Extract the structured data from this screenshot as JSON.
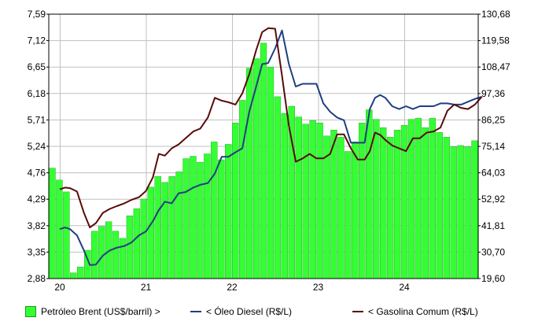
{
  "chart_data": {
    "type": "bar",
    "x_ticks": [
      "20",
      "21",
      "22",
      "23",
      "24"
    ],
    "left_axis": {
      "ticks": [
        "7,59",
        "7,12",
        "6,65",
        "6,18",
        "5,71",
        "5,24",
        "4,76",
        "4,29",
        "3,82",
        "3,35",
        "2,88"
      ],
      "ylim": [
        2.88,
        7.59
      ]
    },
    "right_axis": {
      "ticks": [
        "130,68",
        "119,58",
        "108,47",
        "97,36",
        "86,25",
        "75,14",
        "64,03",
        "52,92",
        "41,81",
        "30,70",
        "19,60"
      ],
      "ylim": [
        19.6,
        130.68
      ]
    },
    "grid": true,
    "legend_position": "bottom",
    "colors": {
      "bar": "#33ff33",
      "bar_edge": "#229922",
      "diesel": "#1f3f7f",
      "gasolina": "#5a0a0a",
      "grid": "#c0c0c0"
    },
    "series": [
      {
        "name": "Petróleo Brent (US$/barril) >",
        "axis": "right",
        "kind": "bar",
        "values": [
          66.0,
          61.0,
          56.0,
          22.0,
          24.5,
          31.5,
          39.5,
          41.5,
          43.5,
          39.5,
          36.5,
          46.0,
          49.0,
          53.0,
          58.0,
          62.5,
          60.0,
          62.5,
          64.5,
          70.0,
          71.0,
          68.5,
          72.0,
          77.0,
          69.5,
          76.0,
          85.0,
          94.5,
          108.0,
          112.0,
          118.5,
          108.5,
          96.0,
          89.0,
          92.0,
          87.5,
          84.5,
          86.0,
          85.0,
          79.5,
          82.0,
          79.0,
          73.0,
          77.0,
          85.0,
          90.5,
          86.5,
          83.0,
          79.0,
          82.0,
          84.0,
          86.5,
          87.0,
          83.0,
          87.0,
          81.0,
          79.0,
          75.0,
          75.5,
          75.0,
          77.5
        ]
      },
      {
        "name": "< Óleo Diesel (R$/L)",
        "axis": "left",
        "kind": "line",
        "x": [
          0,
          0.06,
          0.12,
          0.2,
          0.28,
          0.35,
          0.42,
          0.5,
          0.58,
          0.66,
          0.75,
          0.83,
          0.92,
          1.0,
          1.08,
          1.15,
          1.22,
          1.3,
          1.38,
          1.46,
          1.55,
          1.63,
          1.72,
          1.8,
          1.88,
          1.96,
          2.04,
          2.12,
          2.2,
          2.28,
          2.35,
          2.42,
          2.5,
          2.58,
          2.66,
          2.74,
          2.82,
          2.9,
          2.98,
          3.06,
          3.14,
          3.22,
          3.3,
          3.38,
          3.46,
          3.54,
          3.6,
          3.66,
          3.72,
          3.78,
          3.86,
          3.94,
          4.02,
          4.1,
          4.18,
          4.26,
          4.34,
          4.42,
          4.5,
          4.58,
          4.66,
          4.74,
          4.82,
          4.9
        ],
        "values": [
          3.76,
          3.79,
          3.76,
          3.65,
          3.38,
          3.12,
          3.13,
          3.29,
          3.38,
          3.43,
          3.46,
          3.52,
          3.65,
          3.72,
          3.9,
          4.1,
          4.25,
          4.22,
          4.4,
          4.42,
          4.5,
          4.55,
          4.58,
          4.75,
          5.05,
          5.05,
          5.13,
          5.2,
          5.85,
          6.3,
          6.7,
          6.72,
          6.98,
          7.3,
          6.7,
          6.3,
          6.35,
          6.35,
          6.35,
          6.0,
          5.85,
          5.75,
          5.7,
          5.3,
          5.3,
          5.3,
          5.9,
          6.1,
          6.15,
          6.1,
          5.95,
          5.9,
          5.95,
          5.9,
          5.95,
          5.95,
          5.95,
          6.0,
          6.0,
          5.98,
          5.98,
          6.03,
          6.08,
          6.12
        ]
      },
      {
        "name": "< Gasolina Comum (R$/L)",
        "axis": "left",
        "kind": "line",
        "x": [
          0,
          0.06,
          0.12,
          0.2,
          0.28,
          0.35,
          0.42,
          0.5,
          0.58,
          0.66,
          0.75,
          0.83,
          0.92,
          1.0,
          1.08,
          1.15,
          1.22,
          1.3,
          1.38,
          1.46,
          1.55,
          1.63,
          1.72,
          1.8,
          1.88,
          1.96,
          2.04,
          2.12,
          2.2,
          2.28,
          2.35,
          2.42,
          2.5,
          2.58,
          2.66,
          2.74,
          2.82,
          2.9,
          2.98,
          3.06,
          3.14,
          3.22,
          3.3,
          3.38,
          3.46,
          3.54,
          3.6,
          3.66,
          3.72,
          3.78,
          3.86,
          3.94,
          4.02,
          4.1,
          4.18,
          4.26,
          4.34,
          4.42,
          4.5,
          4.58,
          4.66,
          4.74,
          4.82,
          4.9
        ],
        "values": [
          4.47,
          4.5,
          4.49,
          4.43,
          4.05,
          3.79,
          3.87,
          4.05,
          4.12,
          4.17,
          4.22,
          4.28,
          4.33,
          4.44,
          4.68,
          5.1,
          5.07,
          5.2,
          5.27,
          5.38,
          5.5,
          5.55,
          5.75,
          6.1,
          6.05,
          6.02,
          5.98,
          6.18,
          6.52,
          6.95,
          7.27,
          7.34,
          7.33,
          6.5,
          5.6,
          4.96,
          5.02,
          5.1,
          5.02,
          5.02,
          5.1,
          5.45,
          5.45,
          5.2,
          5.0,
          5.0,
          5.15,
          5.48,
          5.44,
          5.35,
          5.25,
          5.2,
          5.15,
          5.38,
          5.38,
          5.48,
          5.5,
          5.57,
          5.87,
          5.98,
          5.92,
          5.9,
          5.98,
          6.12
        ]
      }
    ]
  }
}
